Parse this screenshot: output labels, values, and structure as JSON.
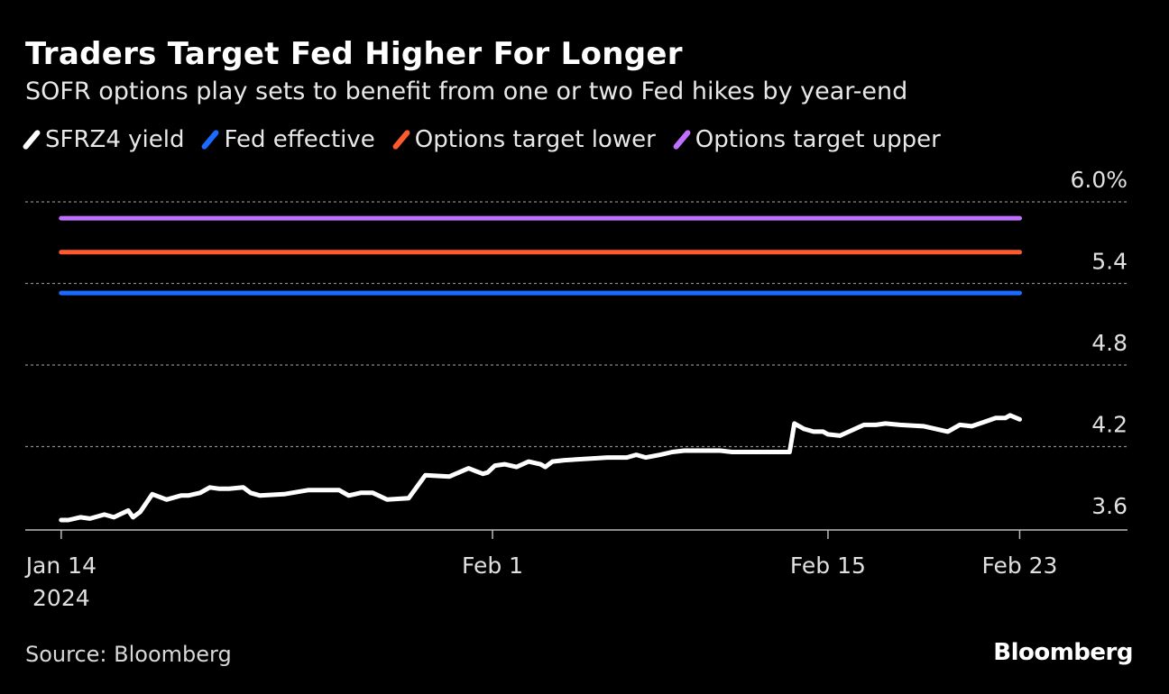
{
  "title": "Traders Target Fed Higher For Longer",
  "subtitle": "SOFR options play sets to benefit from one or two Fed hikes by year-end",
  "source": "Source: Bloomberg",
  "brand": "Bloomberg",
  "legend": [
    {
      "label": "SFRZ4 yield",
      "color": "#ffffff"
    },
    {
      "label": "Fed effective",
      "color": "#1a6bff"
    },
    {
      "label": "Options target lower",
      "color": "#ff5a2e"
    },
    {
      "label": "Options target upper",
      "color": "#c070ff"
    }
  ],
  "chart_data": {
    "type": "line",
    "title": "Traders Target Fed Higher For Longer",
    "xlabel": "",
    "ylabel": "",
    "ylim": [
      3.6,
      6.0
    ],
    "xlim": [
      -1.5,
      44.5
    ],
    "y_ticks": [
      {
        "value": 6.0,
        "label": "6.0%"
      },
      {
        "value": 5.4,
        "label": "5.4"
      },
      {
        "value": 4.8,
        "label": "4.8"
      },
      {
        "value": 4.2,
        "label": "4.2"
      },
      {
        "value": 3.6,
        "label": "3.6"
      }
    ],
    "x_ticks": [
      {
        "day": 0,
        "label": "Jan 14",
        "sublabel": "2024"
      },
      {
        "day": 18,
        "label": "Feb 1",
        "sublabel": ""
      },
      {
        "day": 32,
        "label": "Feb 15",
        "sublabel": ""
      },
      {
        "day": 40,
        "label": "Feb 23",
        "sublabel": ""
      }
    ],
    "grid": true,
    "series": [
      {
        "name": "Options target upper",
        "color": "#c070ff",
        "x": [
          0,
          40
        ],
        "y": [
          5.88,
          5.88
        ]
      },
      {
        "name": "Options target lower",
        "color": "#ff5a2e",
        "x": [
          0,
          40
        ],
        "y": [
          5.63,
          5.63
        ]
      },
      {
        "name": "Fed effective",
        "color": "#1a6bff",
        "x": [
          0,
          40
        ],
        "y": [
          5.33,
          5.33
        ]
      },
      {
        "name": "SFRZ4 yield",
        "color": "#ffffff",
        "x": [
          0,
          0.3,
          0.8,
          1.2,
          1.8,
          2.2,
          2.8,
          3.0,
          3.3,
          3.8,
          4.4,
          4.6,
          5.0,
          5.3,
          5.8,
          6.2,
          6.6,
          7.0,
          7.6,
          7.9,
          8.3,
          9.3,
          10.3,
          11.6,
          12.0,
          12.5,
          13.0,
          13.6,
          14.5,
          15.2,
          16.2,
          17.0,
          17.3,
          17.6,
          17.8,
          18.1,
          18.5,
          19.0,
          19.5,
          20.0,
          20.2,
          20.5,
          21.0,
          22.8,
          23.2,
          23.6,
          24.0,
          24.4,
          25.0,
          25.5,
          26.0,
          26.5,
          27.0,
          27.5,
          28.0,
          29.0,
          30.4,
          30.6,
          31.0,
          31.4,
          31.8,
          32.0,
          32.5,
          33.0,
          33.5,
          34.0,
          34.4,
          35.0,
          36.0,
          36.5,
          37.0,
          37.5,
          38.0,
          38.5,
          39.0,
          39.4,
          39.6,
          40.0
        ],
        "y": [
          3.66,
          3.66,
          3.68,
          3.67,
          3.7,
          3.68,
          3.73,
          3.68,
          3.72,
          3.85,
          3.81,
          3.82,
          3.84,
          3.84,
          3.86,
          3.9,
          3.89,
          3.89,
          3.9,
          3.86,
          3.84,
          3.85,
          3.88,
          3.88,
          3.84,
          3.86,
          3.86,
          3.81,
          3.82,
          3.99,
          3.98,
          4.04,
          4.02,
          4.0,
          4.01,
          4.06,
          4.07,
          4.05,
          4.09,
          4.07,
          4.05,
          4.09,
          4.1,
          4.12,
          4.12,
          4.12,
          4.14,
          4.12,
          4.14,
          4.16,
          4.17,
          4.17,
          4.17,
          4.17,
          4.16,
          4.16,
          4.16,
          4.37,
          4.33,
          4.31,
          4.31,
          4.29,
          4.28,
          4.32,
          4.36,
          4.36,
          4.37,
          4.36,
          4.35,
          4.33,
          4.31,
          4.36,
          4.35,
          4.38,
          4.41,
          4.41,
          4.43,
          4.4
        ]
      }
    ]
  }
}
